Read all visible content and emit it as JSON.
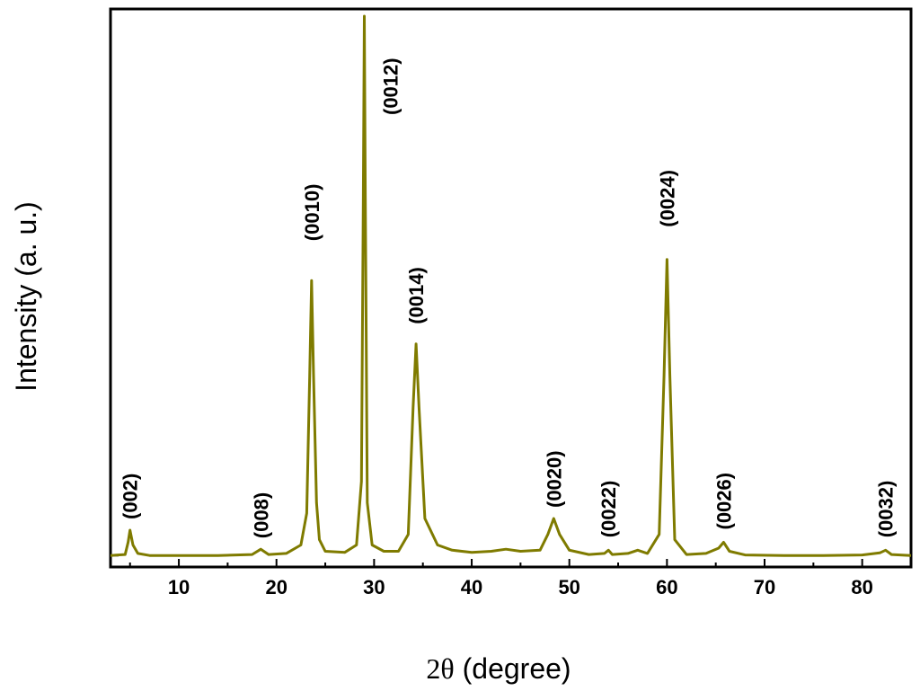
{
  "chart_data": {
    "type": "line",
    "xlabel": "2θ (degree)",
    "xlabel_symbol": "2θ",
    "xlabel_rest": " (degree)",
    "ylabel": "Intensity (a. u.)",
    "xlim": [
      3,
      85
    ],
    "ylim": [
      0,
      1.04
    ],
    "x_ticks": [
      10,
      20,
      30,
      40,
      50,
      60,
      70,
      80
    ],
    "y_ticks_labeled": false,
    "grid": false,
    "line_color": "#7f7b00",
    "baseline": 0.02,
    "peaks": [
      {
        "label": "(002)",
        "x": 5.0,
        "y": 0.068
      },
      {
        "label": "(008)",
        "x": 18.4,
        "y": 0.032
      },
      {
        "label": "(0010)",
        "x": 23.6,
        "y": 0.54
      },
      {
        "label": "(0012)",
        "x": 29.0,
        "y": 1.04
      },
      {
        "label": "(0014)",
        "x": 34.3,
        "y": 0.42
      },
      {
        "label": "(0020)",
        "x": 48.4,
        "y": 0.09
      },
      {
        "label": "(0022)",
        "x": 54.0,
        "y": 0.03
      },
      {
        "label": "(0024)",
        "x": 60.0,
        "y": 0.58
      },
      {
        "label": "(0026)",
        "x": 65.8,
        "y": 0.045
      },
      {
        "label": "(0032)",
        "x": 82.4,
        "y": 0.03
      }
    ],
    "series": [
      {
        "x": [
          3.0,
          4.5,
          4.8,
          5.0,
          5.3,
          5.8,
          7,
          10,
          14,
          17.5,
          18.4,
          19.2,
          21,
          22.5,
          23.1,
          23.4,
          23.6,
          23.8,
          24.1,
          24.4,
          25,
          27,
          28.2,
          28.7,
          28.9,
          29.0,
          29.1,
          29.3,
          29.8,
          31,
          32.5,
          33.5,
          34.0,
          34.3,
          34.6,
          35.2,
          36.5,
          38,
          40,
          42,
          43.5,
          45,
          47,
          47.8,
          48.4,
          49.0,
          50,
          52,
          53.6,
          54.0,
          54.4,
          56,
          57,
          58,
          59.2,
          59.7,
          60.0,
          60.3,
          60.8,
          62,
          64,
          65.3,
          65.8,
          66.4,
          68,
          72,
          76,
          80,
          81.8,
          82.4,
          83.0,
          85
        ],
        "y": [
          0.02,
          0.022,
          0.045,
          0.068,
          0.04,
          0.024,
          0.02,
          0.02,
          0.02,
          0.022,
          0.032,
          0.022,
          0.024,
          0.04,
          0.1,
          0.36,
          0.54,
          0.36,
          0.12,
          0.05,
          0.028,
          0.026,
          0.04,
          0.16,
          0.7,
          1.04,
          0.7,
          0.12,
          0.04,
          0.028,
          0.028,
          0.06,
          0.3,
          0.42,
          0.3,
          0.09,
          0.04,
          0.03,
          0.026,
          0.028,
          0.032,
          0.028,
          0.03,
          0.06,
          0.09,
          0.06,
          0.03,
          0.022,
          0.024,
          0.03,
          0.022,
          0.024,
          0.03,
          0.024,
          0.06,
          0.36,
          0.58,
          0.36,
          0.05,
          0.022,
          0.024,
          0.034,
          0.045,
          0.028,
          0.021,
          0.02,
          0.02,
          0.021,
          0.025,
          0.03,
          0.022,
          0.02
        ]
      }
    ]
  }
}
